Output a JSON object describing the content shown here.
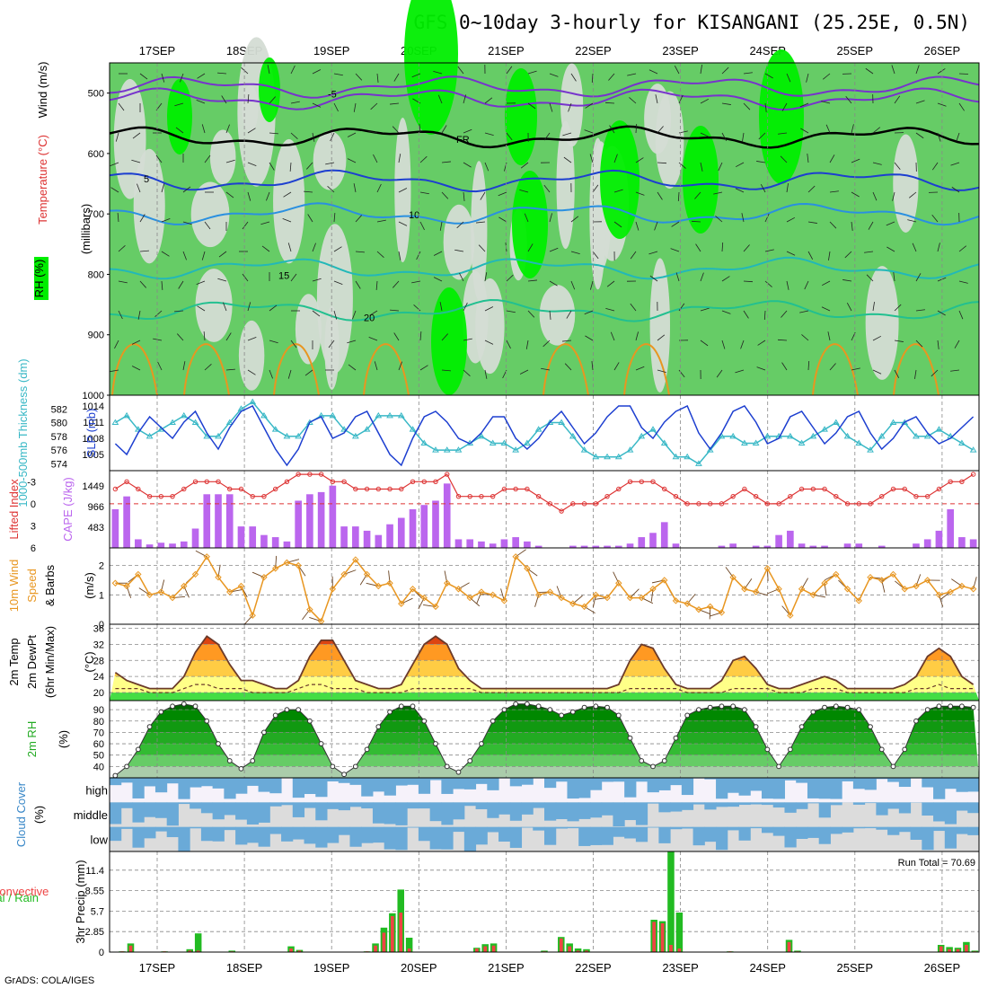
{
  "page": {
    "title": "GFS 0~10day 3-hourly for KISANGANI (25.25E, 0.5N)",
    "credit": "GrADS: COLA/IGES",
    "dates": [
      "17SEP",
      "18SEP",
      "19SEP",
      "20SEP",
      "21SEP",
      "22SEP",
      "23SEP",
      "24SEP",
      "25SEP",
      "26SEP"
    ]
  },
  "colors": {
    "rh_light": "#d4dcd4",
    "rh_mid": "#66cc66",
    "rh_bright": "#00ee00",
    "slp_line": "#1d3fd0",
    "thick_line": "#39b8c6",
    "cape_bar": "#bb66ee",
    "li_line": "#dd3333",
    "wind_line": "#e89620",
    "barb": "#6b4422",
    "rh2m_dark": "#009900",
    "cloud_blue": "#6aaad8",
    "cloud_grey": "#dcdcdc",
    "cloud_high_bg": "#f6f2fa",
    "precip_total": "#22bb22",
    "precip_conv": "#ee4444"
  },
  "chart_data": [
    {
      "type": "heatmap",
      "panel": "upper_air",
      "ylabel": "(millibars)",
      "legend": [
        "Wind (m/s)",
        "Temperature (°C)",
        "RH (%)"
      ],
      "y_ticks": [
        500,
        600,
        700,
        800,
        900,
        1000
      ],
      "ylim": [
        450,
        1000
      ],
      "isotherm_labels": [
        {
          "label": "-5",
          "p": 500
        },
        {
          "label": "FR",
          "p": 575
        },
        {
          "label": "5",
          "p": 640
        },
        {
          "label": "10",
          "p": 700
        },
        {
          "label": "15",
          "p": 800
        },
        {
          "label": "20",
          "p": 870
        }
      ]
    },
    {
      "type": "line",
      "panel": "slp_thickness",
      "ylabel_left": "1000-500mb Thickness (dm)",
      "ylabel_right": "SLP (mb)",
      "left_ticks": [
        574,
        576,
        578,
        580,
        582
      ],
      "right_ticks": [
        1005,
        1008,
        1011,
        1014
      ],
      "series": [
        {
          "name": "SLP",
          "values": [
            1007,
            1005,
            1009,
            1012,
            1010,
            1008,
            1011,
            1013,
            1009,
            1006,
            1010,
            1013,
            1014,
            1010,
            1006,
            1003,
            1006,
            1011,
            1012,
            1008,
            1009,
            1012,
            1013,
            1009,
            1005,
            1003,
            1008,
            1012,
            1013,
            1011,
            1008,
            1007,
            1009,
            1012,
            1012,
            1008,
            1006,
            1008,
            1011,
            1013,
            1010,
            1007,
            1009,
            1012,
            1014,
            1014,
            1010,
            1008,
            1011,
            1013,
            1014,
            1009,
            1006,
            1009,
            1013,
            1014,
            1011,
            1007,
            1008,
            1012,
            1013,
            1010,
            1007,
            1009,
            1012,
            1013,
            1009,
            1006,
            1008,
            1011,
            1012,
            1009,
            1007,
            1008,
            1010,
            1012
          ]
        },
        {
          "name": "Thickness",
          "values": [
            580,
            581,
            579,
            578,
            579,
            580,
            581,
            580,
            578,
            578,
            580,
            582,
            583,
            581,
            579,
            578,
            578,
            580,
            581,
            581,
            579,
            578,
            579,
            581,
            581,
            581,
            579,
            577,
            576,
            576,
            576,
            577,
            578,
            577,
            577,
            576,
            577,
            579,
            580,
            580,
            578,
            576,
            575,
            575,
            575,
            576,
            578,
            579,
            577,
            575,
            575,
            574,
            576,
            578,
            578,
            577,
            577,
            578,
            578,
            578,
            577,
            578,
            579,
            580,
            578,
            577,
            576,
            578,
            580,
            580,
            578,
            578,
            579,
            578,
            577,
            576
          ]
        }
      ]
    },
    {
      "type": "bar",
      "panel": "cape_li",
      "ylabel_left": "Lifted Index",
      "ylabel_right": "CAPE (J/kg)",
      "left_ticks": [
        -3,
        0,
        3,
        6
      ],
      "right_ticks": [
        483,
        966,
        1449
      ],
      "series": [
        {
          "name": "CAPE",
          "values": [
            900,
            1200,
            200,
            80,
            120,
            100,
            150,
            450,
            1250,
            1250,
            1250,
            500,
            500,
            300,
            250,
            150,
            1100,
            1250,
            1300,
            1450,
            500,
            500,
            400,
            300,
            550,
            700,
            900,
            1000,
            1100,
            1500,
            200,
            200,
            150,
            100,
            200,
            250,
            150,
            50,
            0,
            0,
            50,
            50,
            50,
            50,
            50,
            100,
            250,
            350,
            600,
            100,
            0,
            0,
            0,
            50,
            100,
            0,
            50,
            50,
            300,
            400,
            100,
            50,
            50,
            0,
            100,
            100,
            0,
            50,
            0,
            0,
            100,
            200,
            400,
            900,
            250,
            200
          ]
        },
        {
          "name": "Lifted Index",
          "values": [
            -2,
            -3,
            -2,
            -1,
            -1,
            -1,
            -2,
            -3,
            -3,
            -3,
            -2,
            -2,
            -1,
            -1,
            -2,
            -3,
            -4,
            -4,
            -4,
            -3,
            -3,
            -2,
            -2,
            -2,
            -2,
            -2,
            -3,
            -3,
            -3,
            -4,
            -1,
            -1,
            -1,
            -1,
            -2,
            -2,
            -2,
            -1,
            0,
            1,
            0,
            0,
            0,
            -1,
            -2,
            -3,
            -3,
            -3,
            -2,
            -1,
            0,
            0,
            0,
            0,
            -1,
            -2,
            -1,
            0,
            0,
            -1,
            -2,
            -2,
            -2,
            -1,
            0,
            0,
            0,
            -1,
            -2,
            -2,
            -1,
            -1,
            -2,
            -3,
            -3,
            -4
          ]
        }
      ]
    },
    {
      "type": "line",
      "panel": "wind10m",
      "ylabel": "10m Wind Speed & Barbs (m/s)",
      "y_ticks": [
        0,
        1,
        2
      ],
      "ylim": [
        0,
        2.6
      ],
      "series": [
        {
          "name": "Speed",
          "values": [
            1.4,
            1.3,
            1.7,
            1.0,
            1.1,
            0.9,
            1.3,
            1.7,
            2.3,
            1.6,
            1.1,
            1.3,
            0.3,
            1.6,
            1.9,
            2.1,
            2.0,
            0.5,
            0.1,
            1.2,
            1.7,
            2.2,
            1.7,
            1.3,
            1.4,
            0.7,
            1.2,
            0.9,
            0.6,
            1.4,
            1.2,
            0.9,
            1.1,
            1.0,
            0.8,
            2.3,
            1.9,
            1.0,
            1.1,
            0.9,
            0.7,
            0.6,
            1.0,
            0.9,
            1.4,
            0.9,
            0.9,
            1.2,
            1.5,
            0.8,
            0.7,
            0.5,
            0.6,
            0.4,
            1.6,
            1.2,
            1.1,
            1.9,
            1.2,
            0.3,
            1.2,
            1.0,
            1.4,
            1.7,
            1.2,
            0.8,
            1.6,
            1.5,
            1.7,
            1.2,
            1.3,
            1.5,
            1.0,
            1.1,
            1.3,
            1.2
          ]
        }
      ]
    },
    {
      "type": "area",
      "panel": "temp2m",
      "ylabel": "2m Temp 2m DewPt (6hr Min/Max) (°C)",
      "y_ticks": [
        20,
        24,
        28,
        32,
        36
      ],
      "ylim": [
        18,
        37
      ],
      "series": [
        {
          "name": "2m Temp",
          "values": [
            25,
            23,
            22,
            21,
            21,
            21,
            24,
            30,
            34,
            32,
            27,
            23,
            23,
            22,
            21,
            21,
            23,
            29,
            33,
            33,
            28,
            23,
            22,
            21,
            21,
            22,
            27,
            32,
            34,
            32,
            26,
            23,
            21,
            21,
            21,
            21,
            21,
            21,
            21,
            21,
            21,
            21,
            21,
            21,
            22,
            28,
            32,
            31,
            26,
            22,
            21,
            21,
            21,
            23,
            28,
            29,
            26,
            22,
            21,
            21,
            22,
            23,
            24,
            23,
            21,
            21,
            21,
            21,
            21,
            22,
            24,
            29,
            31,
            29,
            24,
            22
          ]
        },
        {
          "name": "2m DewPt",
          "values": [
            21,
            21,
            21,
            20,
            20,
            20,
            21,
            22,
            22,
            21,
            21,
            21,
            20,
            20,
            20,
            20,
            21,
            22,
            22,
            21,
            21,
            21,
            20,
            20,
            20,
            20,
            21,
            21,
            21,
            21,
            21,
            21,
            20,
            20,
            20,
            20,
            20,
            20,
            20,
            20,
            20,
            20,
            20,
            20,
            20,
            21,
            21,
            21,
            21,
            21,
            20,
            20,
            20,
            20,
            21,
            21,
            21,
            21,
            20,
            20,
            20,
            21,
            21,
            21,
            20,
            20,
            20,
            20,
            20,
            20,
            21,
            21,
            22,
            21,
            21,
            21
          ]
        }
      ]
    },
    {
      "type": "area",
      "panel": "rh2m",
      "ylabel": "2m RH (%)",
      "y_ticks": [
        40,
        50,
        60,
        70,
        80,
        90
      ],
      "ylim": [
        30,
        98
      ],
      "series": [
        {
          "name": "2m RH",
          "values": [
            32,
            40,
            55,
            75,
            88,
            93,
            95,
            93,
            80,
            60,
            45,
            38,
            45,
            70,
            85,
            90,
            90,
            80,
            60,
            40,
            33,
            40,
            55,
            75,
            88,
            93,
            93,
            80,
            60,
            40,
            35,
            45,
            60,
            80,
            90,
            95,
            95,
            93,
            90,
            85,
            88,
            92,
            93,
            92,
            85,
            65,
            45,
            40,
            45,
            65,
            85,
            90,
            92,
            93,
            93,
            90,
            75,
            55,
            40,
            55,
            75,
            88,
            92,
            93,
            92,
            90,
            75,
            55,
            40,
            55,
            80,
            90,
            93,
            93,
            93,
            92
          ]
        }
      ]
    },
    {
      "type": "heatmap",
      "panel": "cloud",
      "ylabel": "Cloud Cover (%)",
      "rows": [
        "high",
        "middle",
        "low"
      ]
    },
    {
      "type": "bar",
      "panel": "precip",
      "ylabel": "3hr Precip (mm)",
      "legend": [
        "Total / Rain",
        "Convective"
      ],
      "y_ticks": [
        0,
        2.85,
        5.7,
        8.55,
        11.4
      ],
      "ylim": [
        0,
        14
      ],
      "annotation": "Run Total = 70.69",
      "series": [
        {
          "name": "Total / Rain",
          "values": [
            0,
            0.1,
            1.2,
            0,
            0,
            0,
            0.1,
            0,
            0,
            0.4,
            2.6,
            0,
            0,
            0,
            0.2,
            0,
            0,
            0,
            0,
            0,
            0,
            0.8,
            0.3,
            0,
            0,
            0,
            0,
            0,
            0,
            0,
            0.1,
            1.2,
            3.4,
            5.4,
            8.7,
            2.0,
            0,
            0,
            0,
            0,
            0,
            0,
            0,
            0.6,
            1.1,
            1.2,
            0,
            0,
            0,
            0,
            0,
            0.2,
            0,
            2.1,
            1.2,
            0.5,
            0.4,
            0,
            0,
            0,
            0,
            0,
            0,
            0,
            4.5,
            4.3,
            14.0,
            5.5,
            0,
            0,
            0,
            0,
            0,
            0.1,
            0,
            0,
            0,
            0,
            0,
            0,
            1.7,
            0.2,
            0,
            0,
            0,
            0,
            0,
            0,
            0,
            0,
            0,
            0,
            0,
            0,
            0,
            0,
            0,
            0,
            1.0,
            0.7,
            0.6,
            1.4,
            0.2
          ]
        },
        {
          "name": "Convective",
          "values": [
            0,
            0.1,
            0.9,
            0,
            0,
            0,
            0.1,
            0,
            0,
            0.2,
            0.2,
            0,
            0,
            0,
            0.1,
            0,
            0,
            0,
            0,
            0,
            0,
            0.5,
            0.2,
            0,
            0,
            0,
            0,
            0,
            0,
            0,
            0.1,
            0.9,
            2.7,
            5.0,
            5.5,
            0.5,
            0,
            0,
            0,
            0,
            0,
            0,
            0,
            0.5,
            0.8,
            0.9,
            0,
            0,
            0,
            0,
            0,
            0.1,
            0,
            1.9,
            0.8,
            0.2,
            0.2,
            0,
            0,
            0,
            0,
            0,
            0,
            0,
            4.2,
            4.0,
            1.0,
            0.5,
            0,
            0,
            0,
            0,
            0,
            0.1,
            0,
            0,
            0,
            0,
            0,
            0,
            1.4,
            0.1,
            0,
            0,
            0,
            0,
            0,
            0,
            0,
            0,
            0,
            0,
            0,
            0,
            0,
            0,
            0,
            0,
            0.8,
            0.4,
            0.4,
            1.0,
            0.1
          ]
        }
      ]
    }
  ]
}
